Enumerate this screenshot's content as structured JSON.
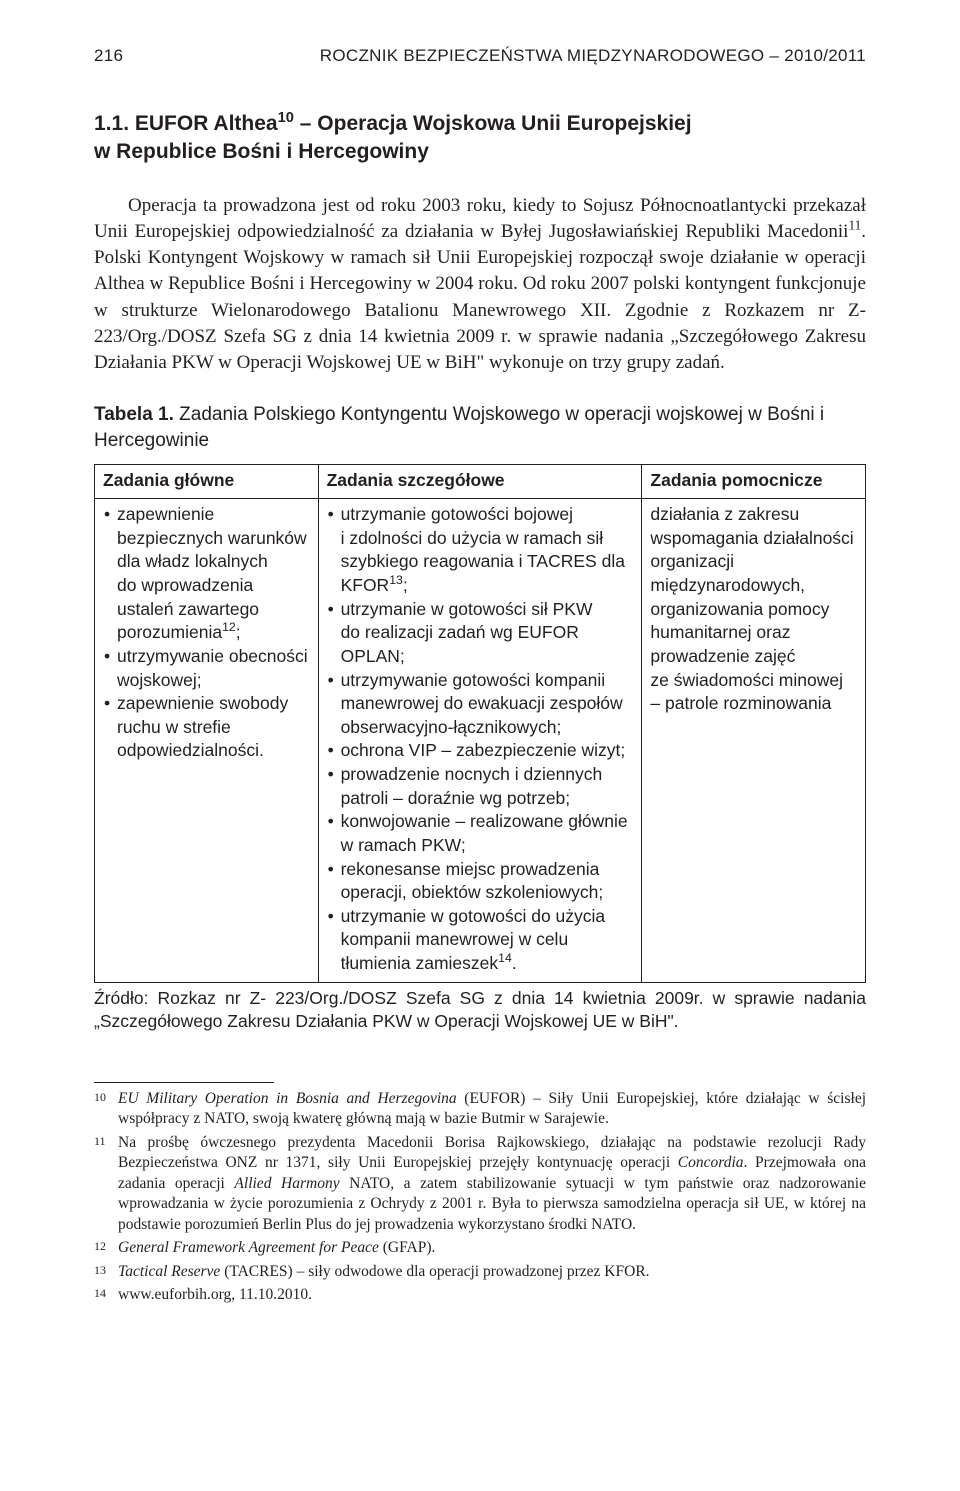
{
  "runningHead": {
    "page": "216",
    "title": "ROCZNIK BEZPIECZEŃSTWA MIĘDZYNARODOWEGO – 2010/2011"
  },
  "section": {
    "number": "1.1.",
    "titleLine1": "EUFOR Althea",
    "titleSup": "10",
    "titleLine1b": " – Operacja Wojskowa Unii Europejskiej",
    "titleLine2": "w Republice Bośni i Hercegowiny"
  },
  "para1a": "Operacja ta prowadzona jest od roku 2003 roku, kiedy to Sojusz Północnoatlantycki przekazał Unii Europejskiej odpowiedzialność za działania w Byłej Jugosławiańskiej Republiki Macedonii",
  "para1sup1": "11",
  "para1b": ". Polski Kontyngent Wojskowy w ramach sił Unii Europejskiej rozpoczął swoje działanie w operacji Althea w Republice Bośni i Hercegowiny w 2004 roku. Od roku 2007 polski kontyngent funkcjonuje w strukturze Wielonarodowego Batalionu Manewrowego XII. Zgodnie z Rozkazem nr Z- 223/Org./DOSZ Szefa SG z dnia 14 kwietnia 2009 r. w sprawie nadania „Szczegółowego Zakresu Działania PKW w Operacji Wojskowej UE w BiH\" wykonuje on trzy grupy zadań.",
  "tableCaption": {
    "bold": "Tabela 1.",
    "rest": " Zadania Polskiego Kontyngentu Wojskowego w operacji wojskowej w Bośni i Hercegowinie"
  },
  "table": {
    "headers": [
      "Zadania główne",
      "Zadania szczegółowe",
      "Zadania pomocnicze"
    ],
    "col1": {
      "items": [
        {
          "pre": "zapewnienie bezpiecznych warunków dla władz lokalnych do wprowadzenia ustaleń zawartego porozumienia",
          "sup": "12",
          "post": ";"
        },
        {
          "pre": "utrzymywanie obecności wojskowej;"
        },
        {
          "pre": "zapewnienie swobody ruchu w strefie odpowiedzialności."
        }
      ]
    },
    "col2": {
      "items": [
        {
          "pre": "utrzymanie gotowości bojowej i zdolności do użycia w ramach sił szybkiego reagowania i TACRES dla KFOR",
          "sup": "13",
          "post": ";"
        },
        {
          "pre": "utrzymanie w gotowości sił PKW do realizacji zadań wg EUFOR OPLAN;"
        },
        {
          "pre": "utrzymywanie gotowości kompanii manewrowej do ewakuacji zespołów obserwacyjno-łącznikowych;"
        },
        {
          "pre": "ochrona VIP – zabezpieczenie wizyt;"
        },
        {
          "pre": "prowadzenie nocnych i dziennych patroli – doraźnie wg potrzeb;"
        },
        {
          "pre": "konwojowanie – realizowane głównie w ramach PKW;"
        },
        {
          "pre": "rekonesanse miejsc prowadzenia operacji, obiektów szkoleniowych;"
        },
        {
          "pre": "utrzymanie w gotowości do użycia kompanii manewrowej w celu tłumienia zamieszek",
          "sup": "14",
          "post": "."
        }
      ]
    },
    "col3": {
      "text": "działania z zakresu wspomagania działalności organizacji międzynarodowych, organizowania pomocy humanitarnej oraz prowadzenie zajęć ze świadomości minowej – patrole rozminowania"
    }
  },
  "tableSource": "Źródło: Rozkaz nr Z- 223/Org./DOSZ Szefa SG z dnia 14 kwietnia 2009r. w sprawie nadania „Szczegółowego Zakresu Działania PKW w Operacji Wojskowej UE w BiH\".",
  "footnotes": [
    {
      "n": "10",
      "html": "<span class='ital'>EU Military Operation in Bosnia and Herzegovina</span> (EUFOR) – Siły Unii Europejskiej, które działając w ścisłej współpracy z NATO, swoją kwaterę główną mają w bazie Butmir w Sarajewie."
    },
    {
      "n": "11",
      "html": "Na prośbę ówczesnego prezydenta Macedonii Borisa Rajkowskiego, działając na podstawie rezolucji Rady Bezpieczeństwa ONZ nr 1371, siły Unii Europejskiej przejęły kontynuację operacji <span class='ital'>Concordia</span>. Przejmowała ona zadania operacji <span class='ital'>Allied Harmony</span> NATO, a zatem stabilizowanie sytuacji w tym państwie oraz nadzorowanie wprowadzania w życie porozumienia z Ochrydy z 2001 r. Była to pierwsza samodzielna operacja sił UE, w której na podstawie porozumień Berlin Plus do jej prowadzenia wykorzystano środki NATO."
    },
    {
      "n": "12",
      "html": "<span class='ital'>General Framework Agreement for Peace</span> (GFAP)."
    },
    {
      "n": "13",
      "html": "<span class='ital'>Tactical Reserve</span> (TACRES) – siły odwodowe dla operacji prowadzonej przez KFOR."
    },
    {
      "n": "14",
      "html": "www.euforbih.org, 11.10.2010."
    }
  ],
  "colors": {
    "text": "#231f20",
    "bg": "#ffffff",
    "rule": "#231f20"
  }
}
